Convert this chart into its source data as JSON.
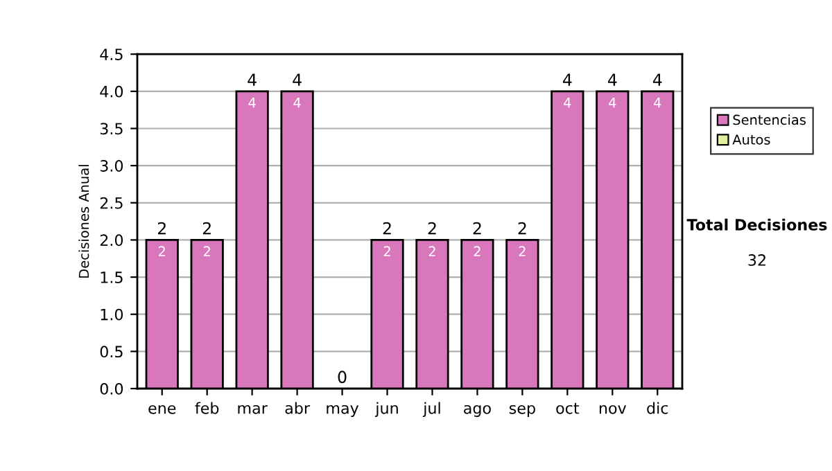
{
  "chart_data": {
    "type": "bar",
    "stacked": true,
    "ylabel": "Decisiones Anual",
    "categories": [
      "ene",
      "feb",
      "mar",
      "abr",
      "may",
      "jun",
      "jul",
      "ago",
      "sep",
      "oct",
      "nov",
      "dic"
    ],
    "series": [
      {
        "name": "Sentencias",
        "color": "#d977bd",
        "values": [
          2,
          2,
          4,
          4,
          0,
          2,
          2,
          2,
          2,
          4,
          4,
          4
        ],
        "value_labels": [
          "2",
          "2",
          "4",
          "4",
          null,
          "2",
          "2",
          "2",
          "2",
          "4",
          "4",
          "4"
        ]
      },
      {
        "name": "Autos",
        "color": "#e0f0a0",
        "values": [
          0,
          0,
          0,
          0,
          0,
          0,
          0,
          0,
          0,
          0,
          0,
          0
        ]
      }
    ],
    "totals": [
      "2",
      "2",
      "4",
      "4",
      "0",
      "2",
      "2",
      "2",
      "2",
      "4",
      "4",
      "4"
    ],
    "ylim": [
      0,
      4.5
    ],
    "yticks": [
      {
        "value": 0,
        "label": "0.0"
      },
      {
        "value": 0.5,
        "label": "0.5"
      },
      {
        "value": 1,
        "label": "1.0"
      },
      {
        "value": 1.5,
        "label": "1.5"
      },
      {
        "value": 2,
        "label": "2.0"
      },
      {
        "value": 2.5,
        "label": "2.5"
      },
      {
        "value": 3,
        "label": "3.0"
      },
      {
        "value": 3.5,
        "label": "3.5"
      },
      {
        "value": 4,
        "label": "4.0"
      },
      {
        "value": 4.5,
        "label": "4.5"
      }
    ],
    "grid": "y",
    "legend": "right",
    "annotations": [
      "Total Decisiones",
      "32"
    ]
  }
}
